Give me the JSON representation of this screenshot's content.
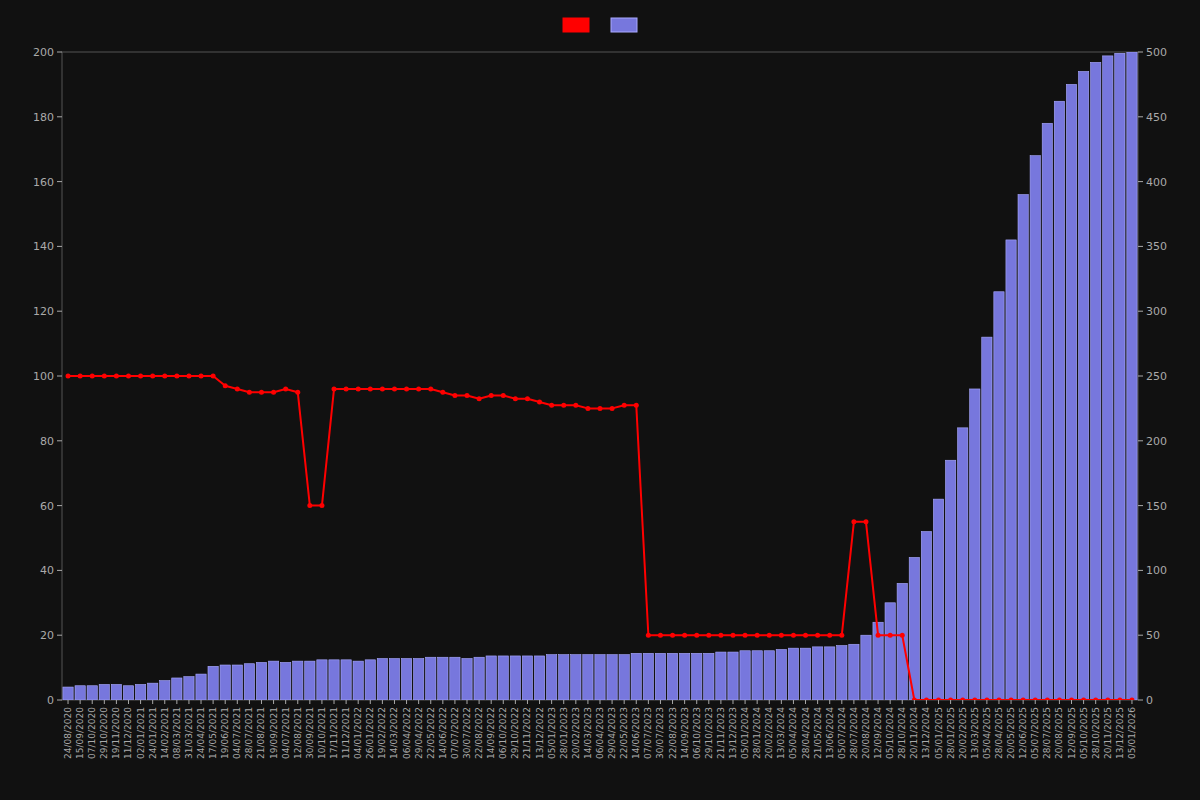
{
  "chart_data": {
    "type": "bar",
    "categories": [
      "24/08/2020",
      "15/09/2020",
      "07/10/2020",
      "29/10/2020",
      "19/11/2020",
      "11/12/2020",
      "02/01/2021",
      "24/01/2021",
      "14/02/2021",
      "08/03/2021",
      "31/03/2021",
      "24/04/2021",
      "17/05/2021",
      "19/06/2021",
      "04/07/2021",
      "28/07/2021",
      "21/08/2021",
      "19/09/2021",
      "04/07/2021",
      "12/08/2021",
      "30/09/2021",
      "10/10/2021",
      "17/11/2021",
      "11/12/2021",
      "04/01/2022",
      "26/01/2022",
      "19/02/2022",
      "14/03/2022",
      "06/04/2022",
      "29/04/2022",
      "22/05/2022",
      "14/06/2022",
      "07/07/2022",
      "30/07/2022",
      "22/08/2022",
      "14/09/2022",
      "06/10/2022",
      "29/10/2022",
      "21/11/2022",
      "13/12/2022",
      "05/01/2023",
      "28/01/2023",
      "20/02/2023",
      "14/03/2023",
      "06/04/2023",
      "29/04/2023",
      "22/05/2023",
      "14/06/2023",
      "07/07/2023",
      "30/07/2023",
      "22/08/2023",
      "14/09/2023",
      "06/10/2023",
      "29/10/2023",
      "21/11/2023",
      "13/12/2023",
      "05/01/2024",
      "28/01/2024",
      "20/02/2024",
      "13/03/2024",
      "05/04/2024",
      "28/04/2024",
      "21/05/2024",
      "13/06/2024",
      "05/07/2024",
      "28/07/2024",
      "20/08/2024",
      "12/09/2024",
      "05/10/2024",
      "28/10/2024",
      "20/11/2024",
      "13/12/2024",
      "05/01/2025",
      "28/01/2025",
      "20/02/2025",
      "13/03/2025",
      "05/04/2025",
      "28/04/2025",
      "20/05/2025",
      "12/06/2025",
      "05/07/2025",
      "28/07/2025",
      "20/08/2025",
      "12/09/2025",
      "05/10/2025",
      "28/10/2025",
      "20/11/2025",
      "13/12/2025",
      "05/01/2026"
    ],
    "series": [
      {
        "type": "line",
        "color": "#ff0000",
        "marker": "circle",
        "values": [
          100,
          100,
          100,
          100,
          100,
          100,
          100,
          100,
          100,
          100,
          100,
          100,
          100,
          97,
          96,
          95,
          95,
          95,
          96,
          95,
          60,
          60,
          96,
          96,
          96,
          96,
          96,
          96,
          96,
          96,
          96,
          95,
          94,
          94,
          93,
          94,
          94,
          93,
          93,
          92,
          91,
          91,
          91,
          90,
          90,
          90,
          91,
          91,
          20,
          20,
          20,
          20,
          20,
          20,
          20,
          20,
          20,
          20,
          20,
          20,
          20,
          20,
          20,
          20,
          20,
          55,
          55,
          20,
          20,
          20,
          0,
          0,
          0,
          0,
          0,
          0,
          0,
          0,
          0,
          0,
          0,
          0,
          0,
          0,
          0,
          0,
          0,
          0,
          0
        ]
      },
      {
        "type": "bar",
        "axis": "y2",
        "color": "#7777dd",
        "values": [
          10,
          11,
          11,
          12,
          12,
          11,
          12,
          13,
          15,
          17,
          18,
          20,
          26,
          27,
          27,
          28,
          29,
          30,
          29,
          30,
          30,
          31,
          31,
          31,
          30,
          31,
          32,
          32,
          32,
          32,
          33,
          33,
          33,
          32,
          33,
          34,
          34,
          34,
          34,
          34,
          35,
          35,
          35,
          35,
          35,
          35,
          35,
          36,
          36,
          36,
          36,
          36,
          36,
          36,
          37,
          37,
          38,
          38,
          38,
          39,
          40,
          40,
          41,
          41,
          42,
          43,
          50,
          60,
          75,
          90,
          110,
          130,
          155,
          185,
          210,
          240,
          280,
          315,
          355,
          390,
          420,
          445,
          462,
          475,
          485,
          492,
          497,
          499,
          500
        ]
      }
    ],
    "ylim": [
      0,
      200
    ],
    "yticks": [
      0,
      20,
      40,
      60,
      80,
      100,
      120,
      140,
      160,
      180,
      200
    ],
    "y2lim": [
      0,
      500
    ],
    "y2ticks": [
      0,
      50,
      100,
      150,
      200,
      250,
      300,
      350,
      400,
      450,
      500
    ],
    "grid": false,
    "legend": "top"
  }
}
